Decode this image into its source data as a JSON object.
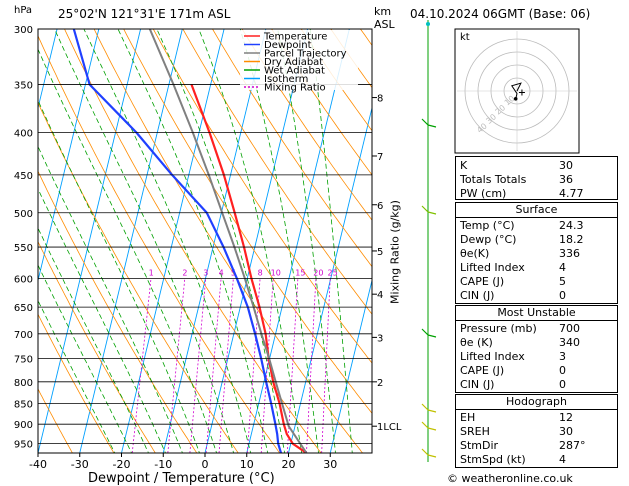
{
  "header": {
    "pressure_unit": "hPa",
    "location": "25°02'N  121°31'E  171m  ASL",
    "km_label": "km",
    "asl_label": "ASL",
    "date": "04.10.2024  06GMT  (Base: 06)"
  },
  "colors": {
    "temperature": "#ff2020",
    "dewpoint": "#2040ff",
    "parcel": "#808080",
    "dry_adiabat": "#ff8c00",
    "wet_adiabat": "#00a000",
    "isotherm": "#00a0ff",
    "mixing_ratio": "#d000d0"
  },
  "chart_data": {
    "type": "line",
    "title": "",
    "xlabel": "Dewpoint / Temperature (°C)",
    "ylabel": "hPa",
    "y2label": "Mixing Ratio (g/kg)",
    "xlim": [
      -40,
      40
    ],
    "ylim": [
      975,
      300
    ],
    "y_scale": "log",
    "skew_per_decade_degC": 48,
    "pressure_ticks": [
      300,
      350,
      400,
      450,
      500,
      550,
      600,
      650,
      700,
      750,
      800,
      850,
      900,
      950
    ],
    "temp_ticks": [
      -40,
      -30,
      -20,
      -10,
      0,
      10,
      20,
      30
    ],
    "km_ticks": [
      {
        "label": "8",
        "p": 363
      },
      {
        "label": "7",
        "p": 427
      },
      {
        "label": "6",
        "p": 489
      },
      {
        "label": "5",
        "p": 556
      },
      {
        "label": "4",
        "p": 627
      },
      {
        "label": "3",
        "p": 707
      },
      {
        "label": "2",
        "p": 800
      },
      {
        "label": "1LCL",
        "p": 905
      }
    ],
    "mixing_ratio_labels": [
      "1",
      "2",
      "3",
      "4",
      "5",
      "8",
      "10",
      "15",
      "20",
      "25"
    ],
    "legend": [
      "Temperature",
      "Dewpoint",
      "Parcel Trajectory",
      "Dry Adiabat",
      "Wet Adiabat",
      "Isotherm",
      "Mixing Ratio"
    ],
    "series": [
      {
        "name": "Temperature",
        "points": [
          [
            975,
            24.3
          ],
          [
            950,
            20.5
          ],
          [
            925,
            18.5
          ],
          [
            900,
            17.2
          ],
          [
            850,
            15.0
          ],
          [
            800,
            12.2
          ],
          [
            750,
            9.8
          ],
          [
            700,
            7.6
          ],
          [
            650,
            4.6
          ],
          [
            600,
            1.0
          ],
          [
            550,
            -2.6
          ],
          [
            500,
            -6.8
          ],
          [
            450,
            -11.6
          ],
          [
            400,
            -17.5
          ],
          [
            350,
            -24.6
          ]
        ]
      },
      {
        "name": "Dewpoint",
        "points": [
          [
            975,
            18.2
          ],
          [
            950,
            17.0
          ],
          [
            925,
            16.2
          ],
          [
            900,
            15.2
          ],
          [
            850,
            13.0
          ],
          [
            800,
            10.5
          ],
          [
            750,
            8.0
          ],
          [
            700,
            5.1
          ],
          [
            650,
            1.8
          ],
          [
            600,
            -2.5
          ],
          [
            550,
            -7.5
          ],
          [
            500,
            -13.5
          ],
          [
            450,
            -24.0
          ],
          [
            400,
            -35.0
          ],
          [
            350,
            -49.0
          ],
          [
            300,
            -56.0
          ]
        ]
      },
      {
        "name": "Parcel Trajectory",
        "points": [
          [
            975,
            24.3
          ],
          [
            905,
            18.5
          ],
          [
            850,
            15.6
          ],
          [
            800,
            12.8
          ],
          [
            750,
            9.9
          ],
          [
            700,
            6.6
          ],
          [
            650,
            3.2
          ],
          [
            600,
            -0.6
          ],
          [
            550,
            -4.9
          ],
          [
            500,
            -9.8
          ],
          [
            450,
            -15.2
          ],
          [
            400,
            -21.5
          ],
          [
            350,
            -28.9
          ],
          [
            300,
            -37.8
          ]
        ]
      }
    ]
  },
  "indices": [
    {
      "label": "K",
      "value": "30"
    },
    {
      "label": "Totals Totals",
      "value": "36"
    },
    {
      "label": "PW (cm)",
      "value": "4.77"
    }
  ],
  "surface": {
    "title": "Surface",
    "rows": [
      {
        "label": "Temp (°C)",
        "value": "24.3"
      },
      {
        "label": "Dewp (°C)",
        "value": "18.2"
      },
      {
        "label": "θe(K)",
        "value": "336"
      },
      {
        "label": "Lifted Index",
        "value": "4"
      },
      {
        "label": "CAPE (J)",
        "value": "5"
      },
      {
        "label": "CIN (J)",
        "value": "0"
      }
    ]
  },
  "most_unstable": {
    "title": "Most Unstable",
    "rows": [
      {
        "label": "Pressure (mb)",
        "value": "700"
      },
      {
        "label": "θe (K)",
        "value": "340"
      },
      {
        "label": "Lifted Index",
        "value": "3"
      },
      {
        "label": "CAPE (J)",
        "value": "0"
      },
      {
        "label": "CIN (J)",
        "value": "0"
      }
    ]
  },
  "hodograph_table": {
    "title": "Hodograph",
    "rows": [
      {
        "label": "EH",
        "value": "12"
      },
      {
        "label": "SREH",
        "value": "30"
      },
      {
        "label": "StmDir",
        "value": "287°"
      },
      {
        "label": "StmSpd (kt)",
        "value": "4"
      }
    ]
  },
  "hodograph": {
    "unit": "kt",
    "rings": [
      "10",
      "20",
      "30",
      "40"
    ],
    "trace_uv": [
      [
        0,
        0
      ],
      [
        1,
        2
      ],
      [
        3,
        6
      ],
      [
        -4,
        4
      ],
      [
        0,
        -2
      ],
      [
        -1,
        -6
      ]
    ],
    "storm_motion_uv": [
      3.8,
      -1.2
    ]
  },
  "footer": {
    "copyright": "© weatheronline.co.uk"
  }
}
